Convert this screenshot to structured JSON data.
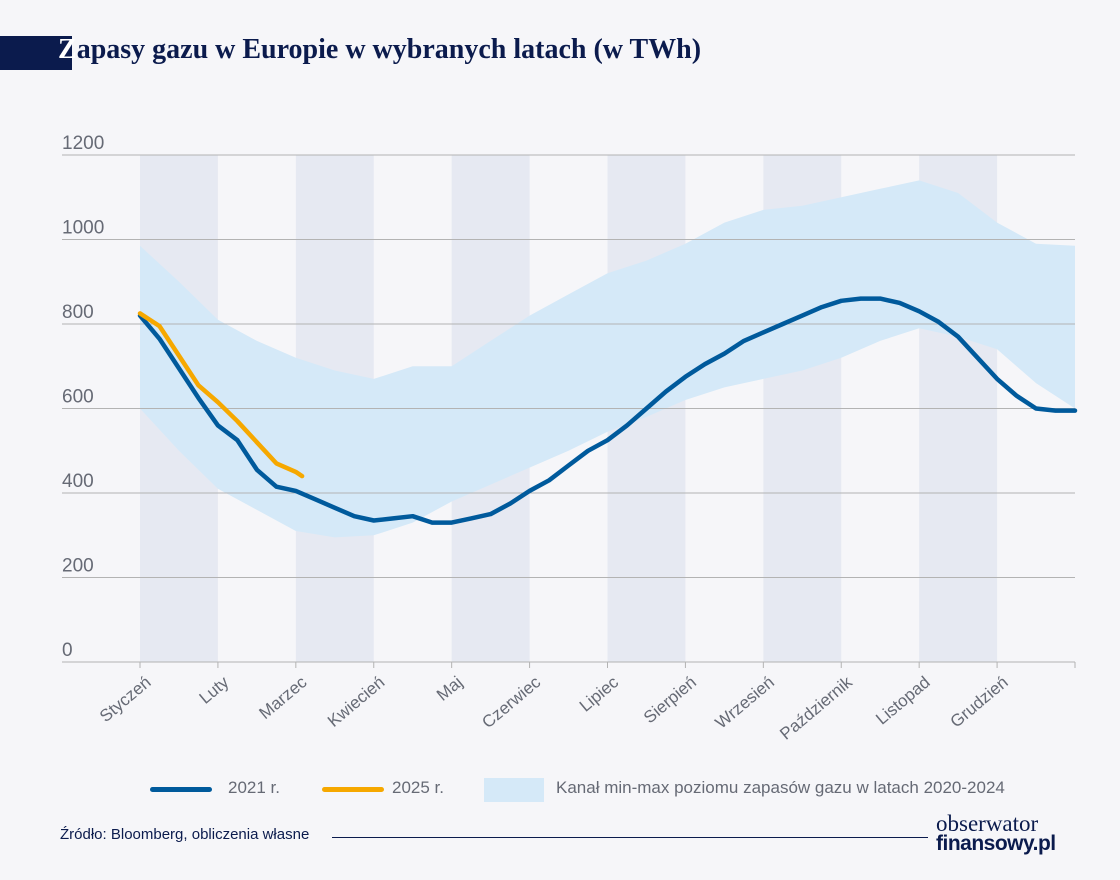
{
  "title": {
    "first_letter": "Z",
    "rest": "apasy gazu w Europie w wybranych latach (w TWh)"
  },
  "source": "Źródło: Bloomberg, obliczenia własne",
  "logo": {
    "line1": "obserwator",
    "line2": "finansowy.pl"
  },
  "colors": {
    "series_2021": "#005a9c",
    "series_2025": "#f6a800",
    "band": "#d5e9f8",
    "month_stripe": "#e6e9f2",
    "grid": "#b3b3b3",
    "text": "#666a75",
    "navy": "#0b1b4d"
  },
  "chart_data": {
    "type": "line",
    "x_unit": "month",
    "categories": [
      "Styczeń",
      "Luty",
      "Marzec",
      "Kwiecień",
      "Maj",
      "Czerwiec",
      "Lipiec",
      "Sierpień",
      "Wrzesień",
      "Październik",
      "Listopad",
      "Grudzień"
    ],
    "yticks": [
      0,
      200,
      400,
      600,
      800,
      1000,
      1200
    ],
    "ylim": [
      0,
      1200
    ],
    "xlim": [
      0,
      12
    ],
    "grid": true,
    "legend_position": "bottom",
    "series": [
      {
        "name": "2021 r.",
        "x": [
          0,
          0.25,
          0.5,
          0.75,
          1,
          1.25,
          1.5,
          1.75,
          2,
          2.25,
          2.5,
          2.75,
          3,
          3.25,
          3.5,
          3.75,
          4,
          4.25,
          4.5,
          4.75,
          5,
          5.25,
          5.5,
          5.75,
          6,
          6.25,
          6.5,
          6.75,
          7,
          7.25,
          7.5,
          7.75,
          8,
          8.25,
          8.5,
          8.75,
          9,
          9.25,
          9.5,
          9.75,
          10,
          10.25,
          10.5,
          10.75,
          11,
          11.25,
          11.5,
          11.75,
          12
        ],
        "values": [
          820,
          765,
          695,
          625,
          560,
          525,
          455,
          415,
          405,
          385,
          365,
          345,
          335,
          340,
          345,
          330,
          330,
          340,
          350,
          375,
          405,
          430,
          465,
          500,
          525,
          560,
          600,
          640,
          675,
          705,
          730,
          760,
          780,
          800,
          820,
          840,
          855,
          860,
          860,
          850,
          830,
          805,
          770,
          720,
          670,
          630,
          600,
          595,
          595
        ]
      },
      {
        "name": "2025 r.",
        "x": [
          0,
          0.25,
          0.5,
          0.75,
          1,
          1.25,
          1.5,
          1.75,
          2,
          2.08
        ],
        "values": [
          825,
          795,
          725,
          655,
          615,
          570,
          520,
          470,
          450,
          440
        ]
      }
    ],
    "band": {
      "name": "Kanał min-max poziomu zapasów gazu w latach 2020-2024",
      "x": [
        0,
        0.5,
        1,
        1.5,
        2,
        2.5,
        3,
        3.5,
        4,
        4.5,
        5,
        5.5,
        6,
        6.5,
        7,
        7.5,
        8,
        8.5,
        9,
        9.5,
        10,
        10.5,
        11,
        11.5,
        12
      ],
      "max": [
        985,
        900,
        810,
        760,
        720,
        690,
        670,
        700,
        700,
        760,
        820,
        870,
        920,
        950,
        990,
        1040,
        1070,
        1080,
        1100,
        1120,
        1140,
        1110,
        1040,
        990,
        985
      ],
      "min": [
        600,
        500,
        410,
        360,
        310,
        295,
        300,
        330,
        380,
        420,
        460,
        500,
        545,
        580,
        620,
        650,
        670,
        690,
        720,
        760,
        790,
        770,
        740,
        660,
        600
      ]
    }
  }
}
